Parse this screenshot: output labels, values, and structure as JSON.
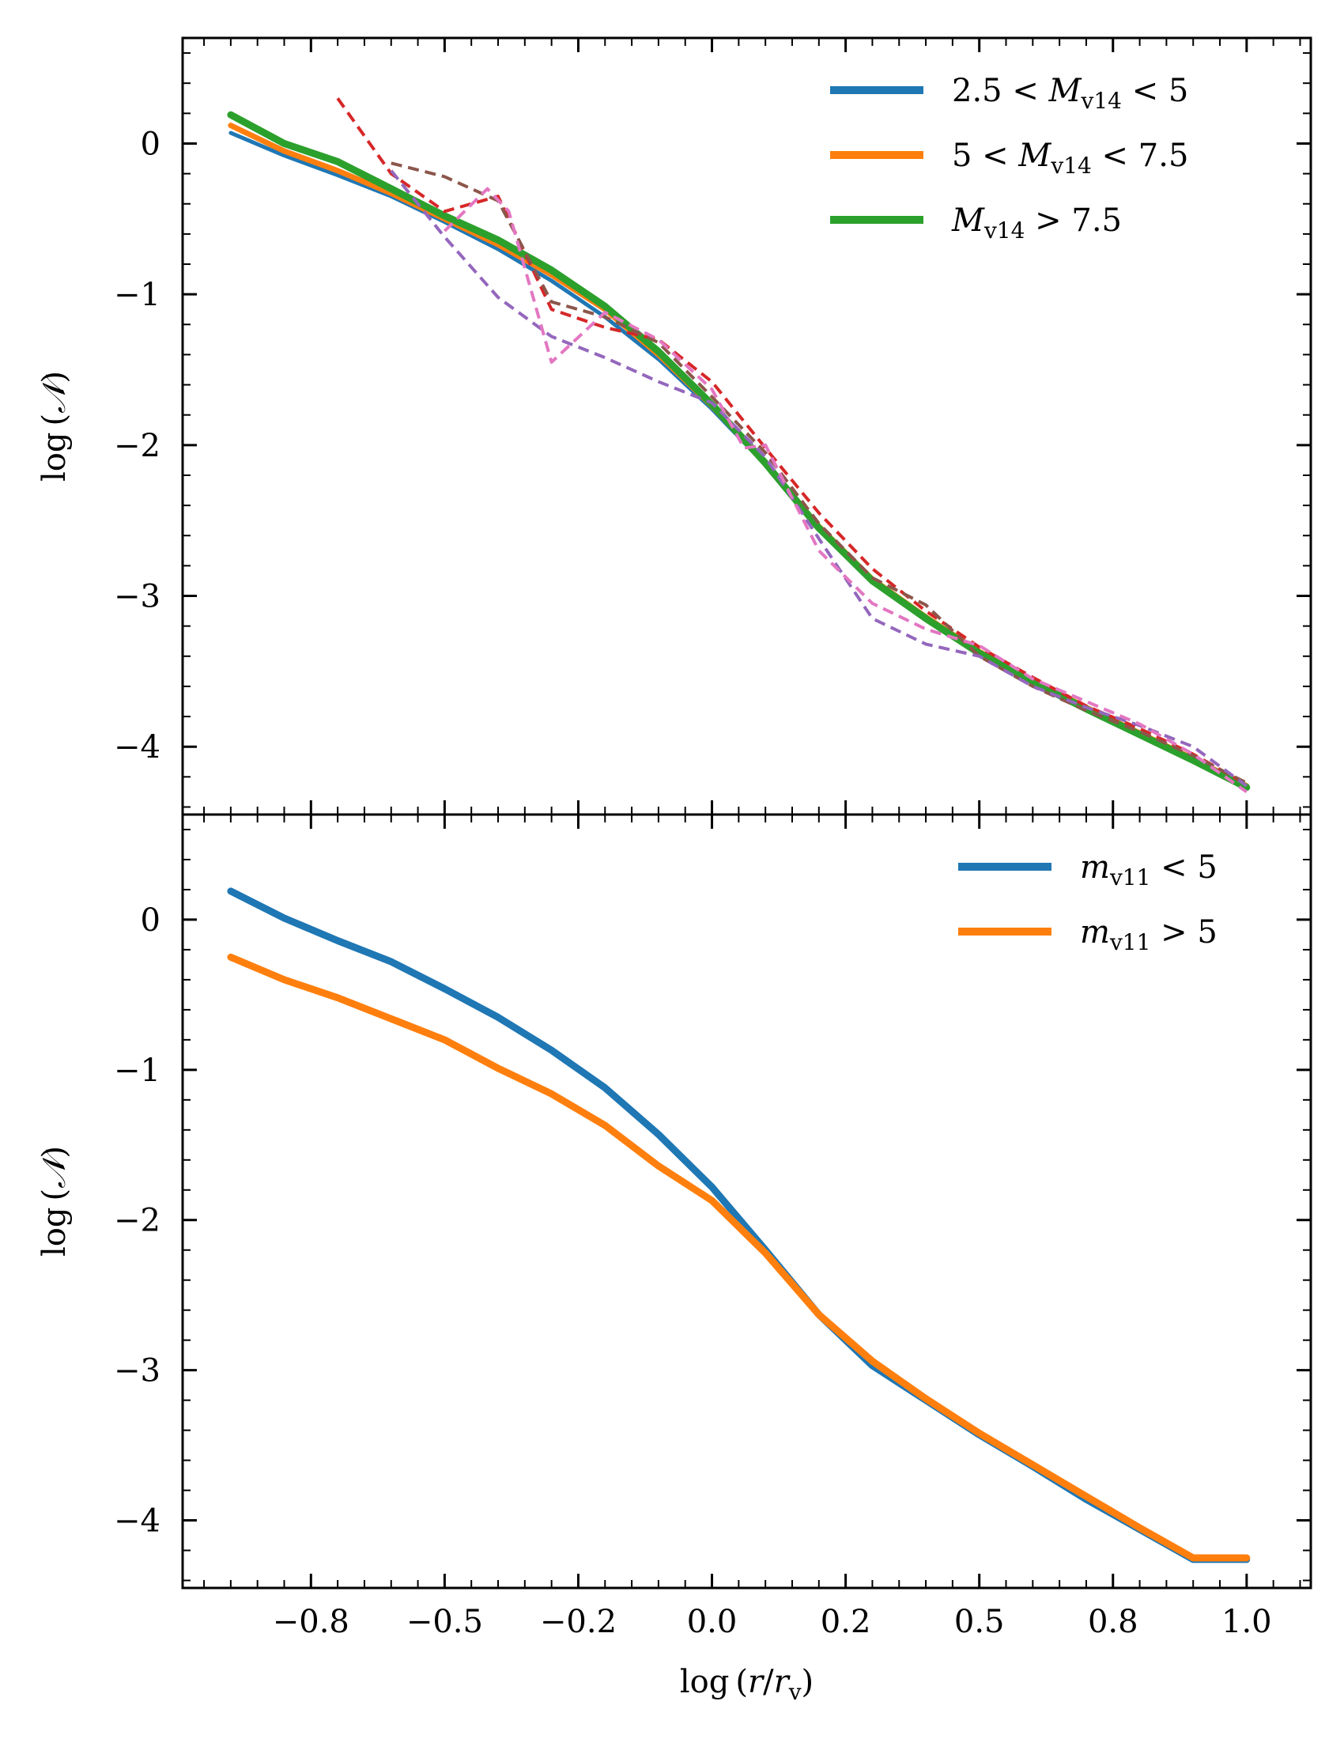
{
  "chart_data": [
    {
      "type": "line",
      "panel": "top",
      "ylabel": "log(𝒩)",
      "xlim": [
        -0.99,
        1.12
      ],
      "ylim": [
        -4.45,
        0.7
      ],
      "yticks": [
        0,
        -1,
        -2,
        -3,
        -4
      ],
      "ytick_labels": [
        "0",
        "−1",
        "−2",
        "−3",
        "−4"
      ],
      "legend_placement": "top-right",
      "series": [
        {
          "name": "2.5 < M_v14 < 5",
          "label": "2.5 < Mv14 < 5",
          "color": "#1f77b4",
          "style": "solid",
          "width": 5,
          "x": [
            -0.9,
            -0.8,
            -0.7,
            -0.6,
            -0.5,
            -0.4,
            -0.3,
            -0.2,
            -0.1,
            0.0,
            0.1,
            0.2,
            0.3,
            0.4,
            0.5,
            0.6,
            0.7,
            0.8,
            0.9,
            1.0
          ],
          "y": [
            0.07,
            -0.08,
            -0.21,
            -0.35,
            -0.52,
            -0.7,
            -0.91,
            -1.15,
            -1.43,
            -1.76,
            -2.13,
            -2.55,
            -2.9,
            -3.15,
            -3.38,
            -3.56,
            -3.74,
            -3.91,
            -4.08,
            -4.27
          ]
        },
        {
          "name": "5 < M_v14 < 7.5",
          "label": "5 < Mv14 < 7.5",
          "color": "#ff7f0e",
          "style": "solid",
          "width": 7,
          "x": [
            -0.9,
            -0.8,
            -0.7,
            -0.6,
            -0.5,
            -0.4,
            -0.3,
            -0.2,
            -0.1,
            0.0,
            0.1,
            0.2,
            0.3,
            0.4,
            0.5,
            0.6,
            0.7,
            0.8,
            0.9,
            1.0
          ],
          "y": [
            0.12,
            -0.05,
            -0.18,
            -0.33,
            -0.5,
            -0.67,
            -0.87,
            -1.1,
            -1.4,
            -1.74,
            -2.12,
            -2.54,
            -2.89,
            -3.14,
            -3.37,
            -3.56,
            -3.74,
            -3.91,
            -4.08,
            -4.26
          ]
        },
        {
          "name": "M_v14 > 7.5",
          "label": "Mv14 > 7.5",
          "color": "#2ca02c",
          "style": "solid",
          "width": 9,
          "x": [
            -0.9,
            -0.8,
            -0.7,
            -0.6,
            -0.5,
            -0.4,
            -0.3,
            -0.2,
            -0.1,
            0.0,
            0.1,
            0.2,
            0.3,
            0.4,
            0.5,
            0.6,
            0.7,
            0.8,
            0.9,
            1.0
          ],
          "y": [
            0.19,
            0.0,
            -0.12,
            -0.3,
            -0.48,
            -0.64,
            -0.84,
            -1.08,
            -1.38,
            -1.73,
            -2.12,
            -2.55,
            -2.9,
            -3.15,
            -3.38,
            -3.57,
            -3.75,
            -3.92,
            -4.09,
            -4.27
          ]
        },
        {
          "name": "dashed-red",
          "color": "#d62728",
          "style": "dashed",
          "width": 4,
          "x": [
            -0.7,
            -0.6,
            -0.5,
            -0.4,
            -0.3,
            -0.2,
            -0.1,
            0.0,
            0.1,
            0.2,
            0.3,
            0.4,
            0.5,
            0.6,
            0.7,
            0.8,
            0.9,
            1.0
          ],
          "y": [
            0.3,
            -0.2,
            -0.45,
            -0.35,
            -1.1,
            -1.22,
            -1.3,
            -1.58,
            -2.02,
            -2.45,
            -2.82,
            -3.1,
            -3.34,
            -3.54,
            -3.73,
            -3.88,
            -4.05,
            -4.25
          ]
        },
        {
          "name": "dashed-brown",
          "color": "#8c564b",
          "style": "dashed",
          "width": 4,
          "x": [
            -0.6,
            -0.5,
            -0.4,
            -0.3,
            -0.2,
            -0.1,
            0.0,
            0.1,
            0.2,
            0.3,
            0.4,
            0.5,
            0.6,
            0.7,
            0.8,
            0.9,
            1.0
          ],
          "y": [
            -0.13,
            -0.22,
            -0.38,
            -1.05,
            -1.15,
            -1.32,
            -1.68,
            -2.05,
            -2.52,
            -2.88,
            -3.06,
            -3.4,
            -3.6,
            -3.76,
            -3.9,
            -4.06,
            -4.24
          ]
        },
        {
          "name": "dashed-purple",
          "color": "#9467bd",
          "style": "dashed",
          "width": 4,
          "x": [
            -0.6,
            -0.5,
            -0.4,
            -0.3,
            -0.2,
            -0.1,
            0.0,
            0.1,
            0.2,
            0.3,
            0.4,
            0.5,
            0.6,
            0.7,
            0.8,
            0.9,
            1.0
          ],
          "y": [
            -0.18,
            -0.62,
            -1.02,
            -1.28,
            -1.42,
            -1.58,
            -1.72,
            -2.08,
            -2.62,
            -3.15,
            -3.32,
            -3.4,
            -3.6,
            -3.74,
            -3.86,
            -4.0,
            -4.26
          ]
        },
        {
          "name": "dashed-pink",
          "color": "#e377c2",
          "style": "dashed",
          "width": 4,
          "x": [
            -0.5,
            -0.42,
            -0.38,
            -0.3,
            -0.2,
            -0.1,
            0.0,
            0.06,
            0.1,
            0.2,
            0.3,
            0.4,
            0.5,
            0.6,
            0.7,
            0.8,
            0.9,
            1.0
          ],
          "y": [
            -0.58,
            -0.3,
            -0.45,
            -1.45,
            -1.12,
            -1.3,
            -1.63,
            -2.02,
            -2.0,
            -2.7,
            -3.05,
            -3.22,
            -3.33,
            -3.55,
            -3.7,
            -3.85,
            -4.05,
            -4.3
          ]
        }
      ]
    },
    {
      "type": "line",
      "panel": "bottom",
      "xlabel": "log(r/rv)",
      "ylabel": "log(𝒩)",
      "xlim": [
        -0.99,
        1.12
      ],
      "ylim": [
        -4.45,
        0.7
      ],
      "xticks": [
        -0.75,
        -0.5,
        -0.25,
        0.0,
        0.25,
        0.5,
        0.75,
        1.0
      ],
      "xtick_labels": [
        "−0.8",
        "−0.5",
        "−0.2",
        "0.0",
        "0.2",
        "0.5",
        "0.8",
        "1.0"
      ],
      "yticks": [
        0,
        -1,
        -2,
        -3,
        -4
      ],
      "ytick_labels": [
        "0",
        "−1",
        "−2",
        "−3",
        "−4"
      ],
      "legend_placement": "top-right",
      "series": [
        {
          "name": "m_v11 < 5",
          "label": "mv11 < 5",
          "color": "#1f77b4",
          "style": "solid",
          "width": 9,
          "x": [
            -0.9,
            -0.8,
            -0.7,
            -0.6,
            -0.5,
            -0.4,
            -0.3,
            -0.2,
            -0.1,
            0.0,
            0.1,
            0.2,
            0.3,
            0.4,
            0.5,
            0.6,
            0.7,
            0.8,
            0.9,
            1.0
          ],
          "y": [
            0.19,
            0.01,
            -0.14,
            -0.28,
            -0.46,
            -0.65,
            -0.87,
            -1.12,
            -1.43,
            -1.78,
            -2.2,
            -2.63,
            -2.97,
            -3.2,
            -3.43,
            -3.64,
            -3.86,
            -4.06,
            -4.26,
            -4.26
          ]
        },
        {
          "name": "m_v11 > 5",
          "label": "mv11 > 5",
          "color": "#ff7f0e",
          "style": "solid",
          "width": 9,
          "x": [
            -0.9,
            -0.8,
            -0.7,
            -0.6,
            -0.5,
            -0.4,
            -0.3,
            -0.2,
            -0.1,
            0.0,
            0.1,
            0.2,
            0.3,
            0.4,
            0.5,
            0.6,
            0.7,
            0.8,
            0.9,
            1.0
          ],
          "y": [
            -0.25,
            -0.4,
            -0.52,
            -0.66,
            -0.8,
            -0.99,
            -1.16,
            -1.37,
            -1.64,
            -1.87,
            -2.22,
            -2.63,
            -2.94,
            -3.19,
            -3.42,
            -3.63,
            -3.84,
            -4.05,
            -4.25,
            -4.25
          ]
        }
      ]
    }
  ]
}
